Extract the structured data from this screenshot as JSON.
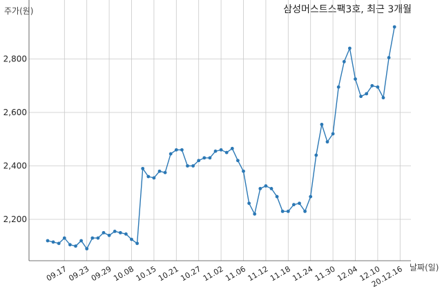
{
  "chart_data": {
    "type": "line",
    "title": "삼성머스트스팩3호, 최근 3개월",
    "ylabel": "주가(원)",
    "xlabel": "날짜(일)",
    "grid": true,
    "ylim": [
      2050,
      2950
    ],
    "y_ticks": [
      2200,
      2400,
      2600,
      2800
    ],
    "y_tick_labels": [
      "2,200",
      "2,400",
      "2,600",
      "2,800"
    ],
    "x_tick_labels": [
      "09.17",
      "09.23",
      "09.29",
      "10.08",
      "10.15",
      "10.21",
      "10.27",
      "11.02",
      "11.06",
      "11.12",
      "11.18",
      "11.24",
      "11.30",
      "12.04",
      "12.10",
      "20.12.16"
    ],
    "x_tick_index": [
      3,
      7,
      11,
      15,
      19,
      23,
      27,
      31,
      35,
      39,
      43,
      47,
      51,
      55,
      59,
      63
    ],
    "series": [
      {
        "color": "#2b78b5",
        "values": [
          2120,
          2115,
          2110,
          2130,
          2105,
          2100,
          2120,
          2090,
          2130,
          2130,
          2150,
          2140,
          2155,
          2150,
          2145,
          2125,
          2110,
          2390,
          2360,
          2355,
          2380,
          2375,
          2445,
          2460,
          2460,
          2400,
          2400,
          2420,
          2430,
          2430,
          2455,
          2460,
          2450,
          2465,
          2420,
          2380,
          2260,
          2220,
          2315,
          2325,
          2315,
          2285,
          2230,
          2230,
          2255,
          2260,
          2230,
          2285,
          2440,
          2555,
          2490,
          2520,
          2695,
          2790,
          2840,
          2725,
          2660,
          2670,
          2700,
          2695,
          2655,
          2805,
          2920
        ]
      }
    ]
  }
}
